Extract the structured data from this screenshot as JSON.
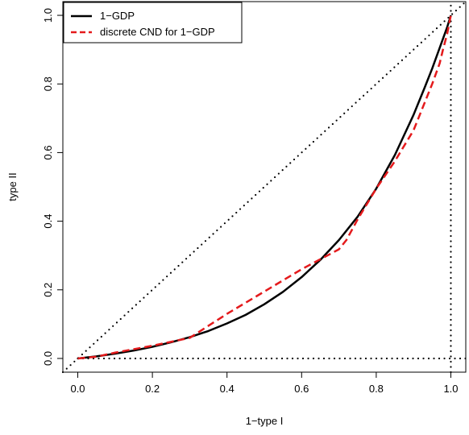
{
  "chart_data": {
    "type": "line",
    "title": "",
    "xlabel": "1−type I",
    "ylabel": "type II",
    "xlim": [
      -0.04,
      1.04
    ],
    "ylim": [
      -0.04,
      1.04
    ],
    "x_ticks": [
      {
        "value": 0.0,
        "label": "0.0"
      },
      {
        "value": 0.2,
        "label": "0.2"
      },
      {
        "value": 0.4,
        "label": "0.4"
      },
      {
        "value": 0.6,
        "label": "0.6"
      },
      {
        "value": 0.8,
        "label": "0.8"
      },
      {
        "value": 1.0,
        "label": "1.0"
      }
    ],
    "y_ticks": [
      {
        "value": 0.0,
        "label": "0.0"
      },
      {
        "value": 0.2,
        "label": "0.2"
      },
      {
        "value": 0.4,
        "label": "0.4"
      },
      {
        "value": 0.6,
        "label": "0.6"
      },
      {
        "value": 0.8,
        "label": "0.8"
      },
      {
        "value": 1.0,
        "label": "1.0"
      }
    ],
    "grid": false,
    "legend_position": "top-left",
    "series": [
      {
        "name": "1−GDP",
        "style": "solid",
        "color": "#000000",
        "x": [
          0.0,
          0.05,
          0.1,
          0.15,
          0.2,
          0.25,
          0.3,
          0.35,
          0.4,
          0.45,
          0.5,
          0.55,
          0.6,
          0.65,
          0.7,
          0.75,
          0.8,
          0.85,
          0.9,
          0.93,
          0.95,
          0.97,
          0.98,
          0.99,
          1.0
        ],
        "y": [
          0.0,
          0.006,
          0.014,
          0.023,
          0.034,
          0.047,
          0.062,
          0.08,
          0.102,
          0.127,
          0.158,
          0.194,
          0.237,
          0.287,
          0.345,
          0.413,
          0.495,
          0.593,
          0.71,
          0.79,
          0.845,
          0.905,
          0.935,
          0.965,
          1.0
        ]
      },
      {
        "name": "discrete CND for 1−GDP",
        "style": "dashed",
        "color": "#e41a1c",
        "x": [
          0.0,
          0.05,
          0.1,
          0.2,
          0.3,
          0.4,
          0.5,
          0.6,
          0.7,
          0.72,
          0.75,
          0.8,
          0.85,
          0.9,
          0.95,
          0.97,
          0.98,
          0.99,
          1.0
        ],
        "y": [
          0.0,
          0.005,
          0.017,
          0.037,
          0.06,
          0.13,
          0.195,
          0.26,
          0.318,
          0.345,
          0.405,
          0.495,
          0.575,
          0.665,
          0.8,
          0.86,
          0.905,
          0.945,
          1.0
        ]
      }
    ],
    "reference_lines": [
      {
        "style": "dotted",
        "color": "#000000",
        "x": [
          -0.04,
          1.04
        ],
        "y": [
          -0.04,
          1.04
        ]
      },
      {
        "style": "dotted",
        "color": "#000000",
        "x": [
          0.0,
          1.04
        ],
        "y": [
          0.0,
          0.0
        ]
      },
      {
        "style": "dotted",
        "color": "#000000",
        "x": [
          1.0,
          1.0
        ],
        "y": [
          -0.04,
          1.04
        ]
      }
    ]
  }
}
